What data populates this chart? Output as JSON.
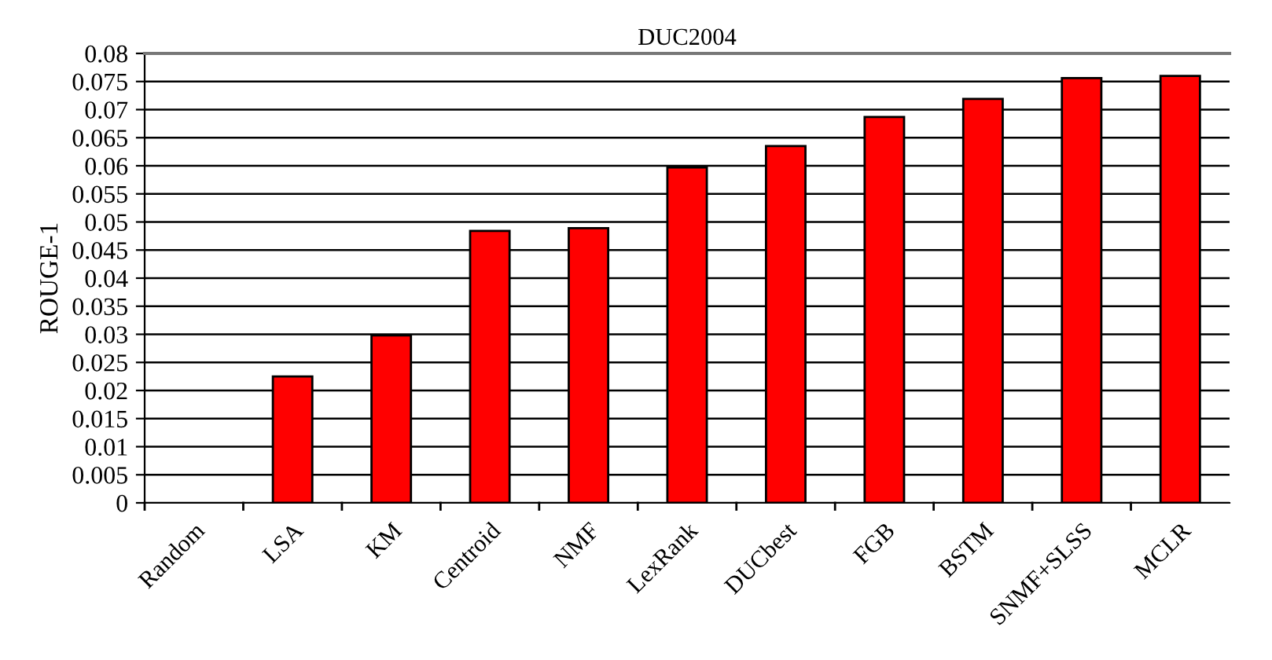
{
  "chart_data": {
    "type": "bar",
    "title": "DUC2004",
    "ylabel": "ROUGE-1",
    "categories": [
      "Random",
      "LSA",
      "KM",
      "Centroid",
      "NMF",
      "LexRank",
      "DUCbest",
      "FGB",
      "BSTM",
      "SNMF+SLSS",
      "MCLR"
    ],
    "values": [
      null,
      0.0225,
      0.0298,
      0.0484,
      0.0489,
      0.0597,
      0.0635,
      0.0687,
      0.0719,
      0.0756,
      0.076
    ],
    "color": "#ff0000",
    "ylim": [
      0,
      0.08
    ],
    "yticks": [
      0,
      0.005,
      0.01,
      0.015,
      0.02,
      0.025,
      0.03,
      0.035,
      0.04,
      0.045,
      0.05,
      0.055,
      0.06,
      0.065,
      0.07,
      0.075,
      0.08
    ],
    "grid": "y"
  }
}
